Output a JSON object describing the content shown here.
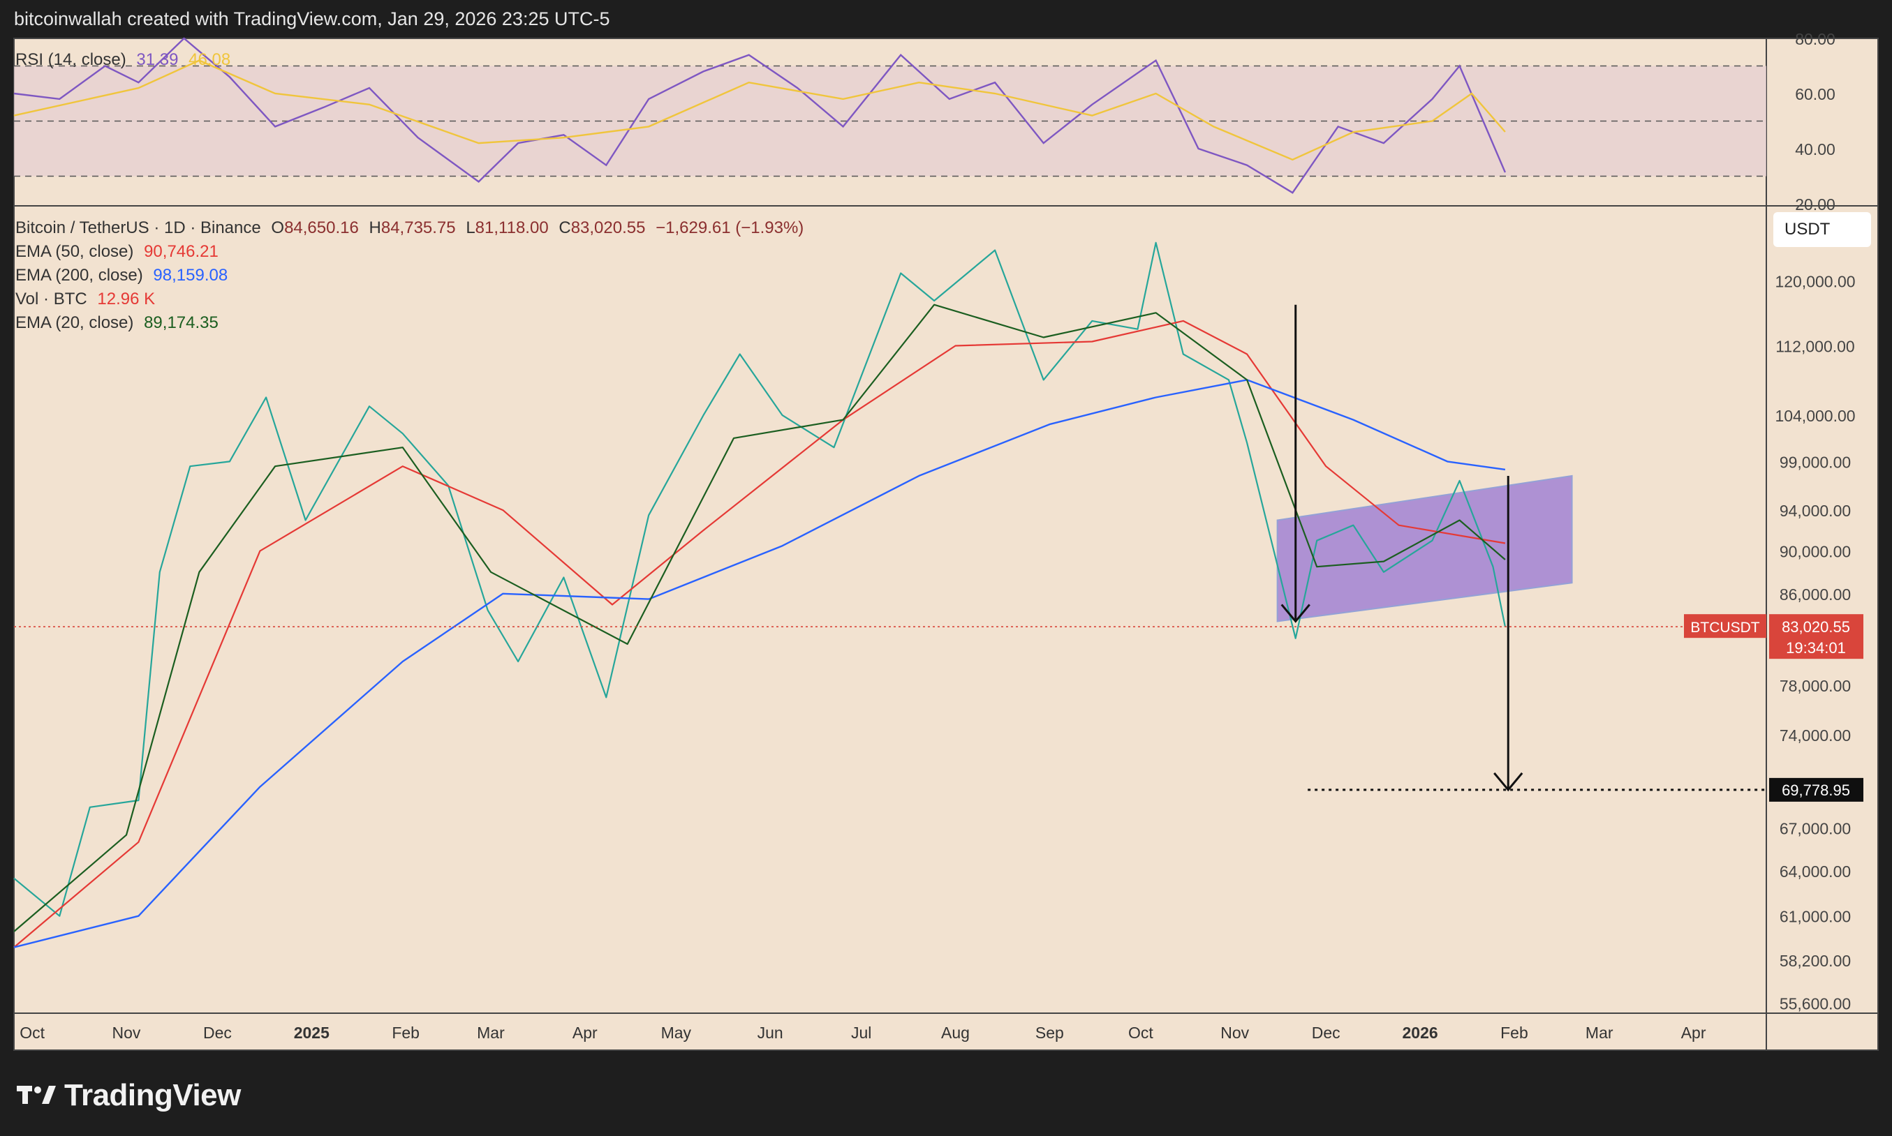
{
  "header": {
    "credit": "bitcoinwallah created with TradingView.com, Jan 29, 2026 23:25 UTC-5"
  },
  "footer": {
    "brand": "TradingView",
    "logo_icon": "tradingview-logo-icon"
  },
  "rsi_panel": {
    "label": "RSI (14, close)",
    "rsi_value": "31.39",
    "ma_value": "46.08",
    "levels": [
      "80.00",
      "60.00",
      "40.00",
      "20.00"
    ],
    "colors": {
      "rsi": "#7e57c2",
      "ma": "#f0c53c",
      "band": "#e6cfd2"
    },
    "chart_data": {
      "type": "line",
      "title": "RSI (14, close)",
      "ylim": [
        20,
        80
      ],
      "bands": {
        "upper": 70,
        "middle": 50,
        "lower": 30
      },
      "series": [
        {
          "name": "RSI",
          "points": [
            [
              "2024-09-25",
              60
            ],
            [
              "2024-10-10",
              58
            ],
            [
              "2024-10-25",
              70
            ],
            [
              "2024-11-05",
              64
            ],
            [
              "2024-11-20",
              80
            ],
            [
              "2024-12-05",
              66
            ],
            [
              "2024-12-20",
              48
            ],
            [
              "2025-01-05",
              55
            ],
            [
              "2025-01-20",
              62
            ],
            [
              "2025-02-05",
              44
            ],
            [
              "2025-02-25",
              28
            ],
            [
              "2025-03-10",
              42
            ],
            [
              "2025-03-25",
              45
            ],
            [
              "2025-04-08",
              34
            ],
            [
              "2025-04-22",
              58
            ],
            [
              "2025-05-10",
              68
            ],
            [
              "2025-05-25",
              74
            ],
            [
              "2025-06-10",
              62
            ],
            [
              "2025-06-25",
              48
            ],
            [
              "2025-07-14",
              74
            ],
            [
              "2025-07-30",
              58
            ],
            [
              "2025-08-14",
              64
            ],
            [
              "2025-08-30",
              42
            ],
            [
              "2025-09-15",
              56
            ],
            [
              "2025-10-06",
              72
            ],
            [
              "2025-10-20",
              40
            ],
            [
              "2025-11-05",
              34
            ],
            [
              "2025-11-20",
              24
            ],
            [
              "2025-12-05",
              48
            ],
            [
              "2025-12-20",
              42
            ],
            [
              "2026-01-05",
              58
            ],
            [
              "2026-01-14",
              70
            ],
            [
              "2026-01-29",
              31.39
            ]
          ]
        },
        {
          "name": "MA",
          "points": [
            [
              "2024-09-25",
              52
            ],
            [
              "2024-11-05",
              62
            ],
            [
              "2024-11-25",
              72
            ],
            [
              "2024-12-20",
              60
            ],
            [
              "2025-01-20",
              56
            ],
            [
              "2025-02-25",
              42
            ],
            [
              "2025-03-25",
              44
            ],
            [
              "2025-04-22",
              48
            ],
            [
              "2025-05-25",
              64
            ],
            [
              "2025-06-25",
              58
            ],
            [
              "2025-07-20",
              64
            ],
            [
              "2025-08-14",
              60
            ],
            [
              "2025-09-15",
              52
            ],
            [
              "2025-10-06",
              60
            ],
            [
              "2025-10-25",
              48
            ],
            [
              "2025-11-20",
              36
            ],
            [
              "2025-12-10",
              46
            ],
            [
              "2026-01-05",
              50
            ],
            [
              "2026-01-18",
              60
            ],
            [
              "2026-01-29",
              46.08
            ]
          ]
        }
      ]
    }
  },
  "main_panel": {
    "symbol": "Bitcoin / TetherUS · 1D · Binance",
    "ohlc": {
      "o_label": "O",
      "o": "84,650.16",
      "h_label": "H",
      "h": "84,735.75",
      "l_label": "L",
      "l": "81,118.00",
      "c_label": "C",
      "c": "83,020.55",
      "chg": "−1,629.61 (−1.93%)"
    },
    "indicators": [
      {
        "label": "EMA (50, close)",
        "value": "90,746.21",
        "color": "#e53935"
      },
      {
        "label": "EMA (200, close)",
        "value": "98,159.08",
        "color": "#2962ff"
      },
      {
        "label": "Vol · BTC",
        "value": "12.96 K",
        "color": "#e53935"
      },
      {
        "label": "EMA (20, close)",
        "value": "89,174.35",
        "color": "#1b5e20"
      }
    ],
    "currency_button": "USDT",
    "price_tag": {
      "symbol": "BTCUSDT",
      "price": "83,020.55",
      "countdown": "19:34:01",
      "color": "#d9453b"
    },
    "target_tag": {
      "price": "69,778.95"
    },
    "price_ticks": [
      "120,000.00",
      "112,000.00",
      "104,000.00",
      "99,000.00",
      "94,000.00",
      "90,000.00",
      "86,000.00",
      "78,000.00",
      "74,000.00",
      "67,000.00",
      "64,000.00",
      "61,000.00",
      "58,200.00",
      "55,600.00"
    ],
    "time_ticks": [
      "Oct",
      "Nov",
      "Dec",
      "2025",
      "Feb",
      "Mar",
      "Apr",
      "May",
      "Jun",
      "Jul",
      "Aug",
      "Sep",
      "Oct",
      "Nov",
      "Dec",
      "2026",
      "Feb",
      "Mar",
      "Apr"
    ],
    "channel_color": "#9c7bd4"
  },
  "chart_data": {
    "type": "line",
    "title": "Bitcoin / TetherUS · 1D · Binance",
    "yscale": "log",
    "ylim": [
      55000,
      130000
    ],
    "x_range": [
      "2024-09-25",
      "2026-04-25"
    ],
    "series": [
      {
        "name": "BTCUSDT close",
        "color": "#26a69a",
        "points": [
          [
            "2024-09-25",
            63500
          ],
          [
            "2024-10-10",
            61000
          ],
          [
            "2024-10-20",
            68500
          ],
          [
            "2024-11-05",
            69000
          ],
          [
            "2024-11-12",
            88000
          ],
          [
            "2024-11-22",
            98500
          ],
          [
            "2024-12-05",
            99000
          ],
          [
            "2024-12-17",
            106000
          ],
          [
            "2024-12-30",
            93000
          ],
          [
            "2025-01-20",
            105000
          ],
          [
            "2025-01-31",
            102000
          ],
          [
            "2025-02-15",
            96500
          ],
          [
            "2025-02-28",
            84500
          ],
          [
            "2025-03-10",
            80000
          ],
          [
            "2025-03-25",
            87500
          ],
          [
            "2025-04-08",
            77000
          ],
          [
            "2025-04-22",
            93500
          ],
          [
            "2025-05-10",
            104000
          ],
          [
            "2025-05-22",
            111000
          ],
          [
            "2025-06-05",
            104000
          ],
          [
            "2025-06-22",
            100500
          ],
          [
            "2025-07-14",
            121000
          ],
          [
            "2025-07-25",
            117500
          ],
          [
            "2025-08-14",
            124000
          ],
          [
            "2025-08-30",
            108000
          ],
          [
            "2025-09-15",
            115000
          ],
          [
            "2025-09-30",
            114000
          ],
          [
            "2025-10-06",
            125000
          ],
          [
            "2025-10-15",
            111000
          ],
          [
            "2025-10-30",
            108000
          ],
          [
            "2025-11-05",
            101000
          ],
          [
            "2025-11-21",
            82000
          ],
          [
            "2025-11-28",
            91000
          ],
          [
            "2025-12-10",
            92500
          ],
          [
            "2025-12-20",
            88000
          ],
          [
            "2026-01-05",
            91000
          ],
          [
            "2026-01-14",
            97000
          ],
          [
            "2026-01-25",
            88500
          ],
          [
            "2026-01-29",
            83020.55
          ]
        ]
      },
      {
        "name": "EMA (50, close)",
        "color": "#e53935",
        "points": [
          [
            "2024-09-25",
            59000
          ],
          [
            "2024-11-05",
            66000
          ],
          [
            "2024-12-15",
            90000
          ],
          [
            "2025-01-31",
            98500
          ],
          [
            "2025-03-05",
            94000
          ],
          [
            "2025-04-10",
            85000
          ],
          [
            "2025-05-10",
            92000
          ],
          [
            "2025-06-25",
            103500
          ],
          [
            "2025-08-01",
            112000
          ],
          [
            "2025-09-15",
            112500
          ],
          [
            "2025-10-15",
            115000
          ],
          [
            "2025-11-05",
            111000
          ],
          [
            "2025-12-01",
            98500
          ],
          [
            "2025-12-25",
            92500
          ],
          [
            "2026-01-29",
            90746.21
          ]
        ]
      },
      {
        "name": "EMA (200, close)",
        "color": "#2962ff",
        "points": [
          [
            "2024-09-25",
            59000
          ],
          [
            "2024-11-05",
            61000
          ],
          [
            "2024-12-15",
            70000
          ],
          [
            "2025-01-31",
            80000
          ],
          [
            "2025-03-05",
            86000
          ],
          [
            "2025-04-22",
            85500
          ],
          [
            "2025-06-05",
            90500
          ],
          [
            "2025-07-20",
            97500
          ],
          [
            "2025-09-01",
            103000
          ],
          [
            "2025-10-06",
            106000
          ],
          [
            "2025-11-05",
            108000
          ],
          [
            "2025-12-10",
            103500
          ],
          [
            "2026-01-10",
            99000
          ],
          [
            "2026-01-29",
            98159.08
          ]
        ]
      },
      {
        "name": "EMA (20, close)",
        "color": "#1b5e20",
        "points": [
          [
            "2024-09-25",
            60000
          ],
          [
            "2024-11-01",
            66500
          ],
          [
            "2024-11-25",
            88000
          ],
          [
            "2024-12-20",
            98500
          ],
          [
            "2025-01-31",
            100500
          ],
          [
            "2025-03-01",
            88000
          ],
          [
            "2025-04-15",
            81500
          ],
          [
            "2025-05-20",
            101500
          ],
          [
            "2025-06-25",
            103500
          ],
          [
            "2025-07-25",
            117000
          ],
          [
            "2025-08-30",
            113000
          ],
          [
            "2025-10-06",
            116000
          ],
          [
            "2025-11-05",
            108000
          ],
          [
            "2025-11-28",
            88500
          ],
          [
            "2025-12-20",
            89000
          ],
          [
            "2026-01-14",
            93000
          ],
          [
            "2026-01-29",
            89174.35
          ]
        ]
      }
    ],
    "annotations": {
      "channel": {
        "start_date": "2025-11-15",
        "end_date": "2026-02-20",
        "start_low": 83500,
        "start_high": 93000,
        "end_low": 87000,
        "end_high": 97500
      },
      "arrows": [
        {
          "date": "2025-11-21",
          "from": 117000,
          "to": 83500
        },
        {
          "date": "2026-01-30",
          "from": 97500,
          "to": 69778.95
        }
      ],
      "target_line": {
        "price": 69778.95,
        "from_date": "2025-11-25"
      },
      "current_price_line": 83020.55
    }
  }
}
